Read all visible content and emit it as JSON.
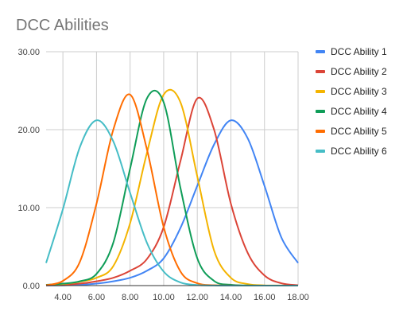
{
  "chart_data": {
    "type": "line",
    "title": "DCC Abilities",
    "xlabel": "",
    "ylabel": "",
    "xlim": [
      3,
      18
    ],
    "ylim": [
      0,
      30
    ],
    "x_ticks": [
      4,
      6,
      8,
      10,
      12,
      14,
      16,
      18
    ],
    "x_tick_labels": [
      "4.00",
      "6.00",
      "8.00",
      "10.00",
      "12.00",
      "14.00",
      "16.00",
      "18.00"
    ],
    "y_ticks": [
      0,
      10,
      20,
      30
    ],
    "y_tick_labels": [
      "0.00",
      "10.00",
      "20.00",
      "30.00"
    ],
    "grid": true,
    "legend_position": "right",
    "x": [
      3,
      4,
      5,
      6,
      7,
      8,
      9,
      10,
      11,
      12,
      13,
      14,
      15,
      16,
      17,
      18
    ],
    "series": [
      {
        "name": "DCC Ability 1",
        "color": "#4285f4",
        "values": [
          0.01,
          0.03,
          0.1,
          0.25,
          0.55,
          1.0,
          1.9,
          3.5,
          7.4,
          12.8,
          18.1,
          21.2,
          18.9,
          12.8,
          6.2,
          2.9
        ]
      },
      {
        "name": "DCC Ability 2",
        "color": "#db4437",
        "values": [
          0.03,
          0.1,
          0.25,
          0.55,
          1.0,
          1.9,
          3.4,
          7.5,
          16.0,
          24.0,
          20.0,
          10.5,
          4.2,
          1.3,
          0.3,
          0.05
        ]
      },
      {
        "name": "DCC Ability 3",
        "color": "#f4b400",
        "values": [
          0.05,
          0.2,
          0.5,
          1.0,
          2.5,
          8.0,
          17.0,
          24.5,
          23.5,
          14.0,
          4.5,
          1.0,
          0.2,
          0.03,
          0.01,
          0.0
        ]
      },
      {
        "name": "DCC Ability 4",
        "color": "#0f9d58",
        "values": [
          0.1,
          0.25,
          0.55,
          1.5,
          5.5,
          15.0,
          24.0,
          23.5,
          12.5,
          3.5,
          0.6,
          0.1,
          0.02,
          0.0,
          0.0,
          0.0
        ]
      },
      {
        "name": "DCC Ability 5",
        "color": "#ff6d01",
        "values": [
          0.05,
          0.6,
          3.0,
          10.5,
          20.0,
          24.5,
          17.5,
          7.5,
          1.8,
          0.3,
          0.05,
          0.01,
          0.0,
          0.0,
          0.0,
          0.0
        ]
      },
      {
        "name": "DCC Ability 6",
        "color": "#46bdc6",
        "values": [
          2.9,
          9.8,
          17.7,
          21.2,
          18.5,
          11.9,
          5.5,
          1.8,
          0.4,
          0.07,
          0.01,
          0.0,
          0.0,
          0.0,
          0.0,
          0.0
        ]
      }
    ]
  }
}
